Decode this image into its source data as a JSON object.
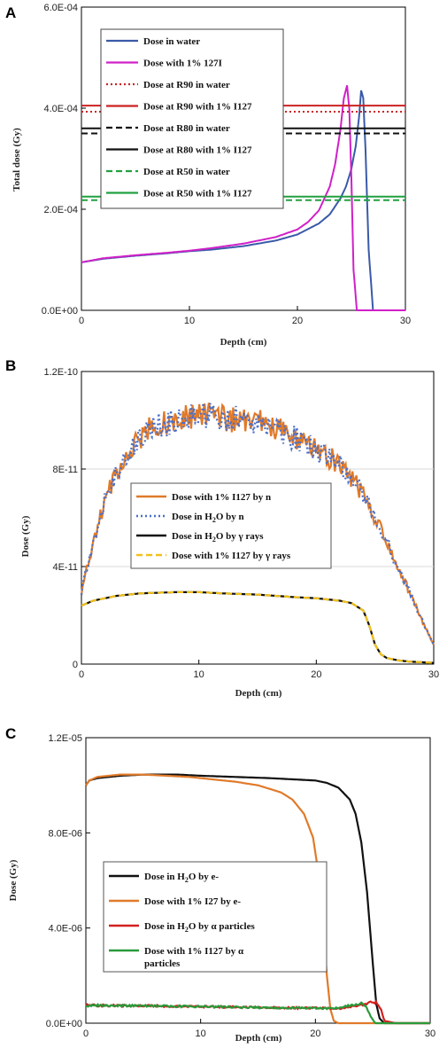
{
  "chart_data": [
    {
      "panel": "A",
      "type": "line",
      "xlabel": "Depth (cm)",
      "ylabel": "Total dose (Gy)",
      "xlim": [
        0,
        30
      ],
      "ylim": [
        0,
        0.0006
      ],
      "xticks": [
        0,
        10,
        20,
        30
      ],
      "xtick_labels": [
        "0",
        "10",
        "20",
        "30"
      ],
      "yticks": [
        0,
        0.0002,
        0.0004,
        0.0006
      ],
      "ytick_labels": [
        "0.0E+00",
        "2.0E-04",
        "4.0E-04",
        "6.0E-04"
      ],
      "legend_position": "top-left",
      "series": [
        {
          "name": "Dose in water",
          "color": "#3a5aa8",
          "dash": "solid",
          "x": [
            0,
            2,
            5,
            8,
            10,
            12,
            15,
            18,
            20,
            22,
            23,
            24,
            24.5,
            25,
            25.4,
            25.7,
            25.9,
            26.1,
            26.3,
            26.6,
            27,
            30
          ],
          "y": [
            9.5e-05,
            0.000102,
            0.000108,
            0.000113,
            0.000117,
            0.00012,
            0.000127,
            0.000138,
            0.00015,
            0.000172,
            0.00019,
            0.000222,
            0.000245,
            0.00028,
            0.000325,
            0.00038,
            0.000435,
            0.00042,
            0.00032,
            0.00012,
            0,
            0
          ]
        },
        {
          "name": "Dose with 1% 127I",
          "color": "#d020c8",
          "dash": "solid",
          "x": [
            0,
            2,
            5,
            8,
            10,
            12,
            15,
            18,
            20,
            21,
            22,
            23,
            23.5,
            24,
            24.3,
            24.6,
            24.8,
            25,
            25.2,
            25.5,
            30
          ],
          "y": [
            9.5e-05,
            0.000103,
            0.000109,
            0.000114,
            0.000118,
            0.000123,
            0.000132,
            0.000145,
            0.00016,
            0.000175,
            0.000198,
            0.000245,
            0.00029,
            0.00036,
            0.00042,
            0.000445,
            0.0004,
            0.00026,
            8e-05,
            0,
            0
          ]
        },
        {
          "name": "Dose at R90 in water",
          "color": "#cc2222",
          "dash": "dotted",
          "hline": 0.000393
        },
        {
          "name": "Dose at R90 with 1% I127",
          "color": "#cc2222",
          "dash": "solid",
          "hline": 0.000405
        },
        {
          "name": "Dose at R80 in water",
          "color": "#111111",
          "dash": "dashed",
          "hline": 0.00035
        },
        {
          "name": "Dose at R80 with 1% I127",
          "color": "#111111",
          "dash": "solid",
          "hline": 0.00036
        },
        {
          "name": "Dose at R50 in water",
          "color": "#22a040",
          "dash": "dashed",
          "hline": 0.000218
        },
        {
          "name": "Dose at R50 with 1% I127",
          "color": "#22a040",
          "dash": "solid",
          "hline": 0.000225
        }
      ]
    },
    {
      "panel": "B",
      "type": "line",
      "xlabel": "Depth (cm)",
      "ylabel": "Dose (Gy)",
      "xlim": [
        0,
        30
      ],
      "ylim": [
        0,
        1.2e-10
      ],
      "xticks": [
        0,
        10,
        20,
        30
      ],
      "xtick_labels": [
        "0",
        "10",
        "20",
        "30"
      ],
      "yticks": [
        0,
        4e-11,
        8e-11,
        1.2e-10
      ],
      "ytick_labels": [
        "0",
        "4E-11",
        "8E-11",
        "1.2E-10"
      ],
      "legend_position": "center",
      "series": [
        {
          "name": "Dose with 1% I127 by n",
          "color": "#e07a2a",
          "dash": "solid",
          "noisy": true,
          "x": [
            0,
            1,
            2,
            3,
            4,
            5,
            6,
            8,
            10,
            12,
            14,
            16,
            18,
            20,
            22,
            23,
            24,
            25,
            26,
            27,
            28,
            29,
            30
          ],
          "y": [
            3e-11,
            5e-11,
            6.7e-11,
            7.8e-11,
            8.7e-11,
            9.3e-11,
            9.7e-11,
            1e-10,
            1.02e-10,
            1.01e-10,
            1e-10,
            9.8e-11,
            9.3e-11,
            8.8e-11,
            8.2e-11,
            7.6e-11,
            7e-11,
            6e-11,
            5e-11,
            3.9e-11,
            2.9e-11,
            1.8e-11,
            8e-12
          ]
        },
        {
          "name": "Dose in H2O by n",
          "color": "#4a6fc8",
          "dash": "dotted",
          "noisy": true,
          "x": [
            0,
            1,
            2,
            3,
            4,
            5,
            6,
            8,
            10,
            12,
            14,
            16,
            18,
            20,
            22,
            23,
            24,
            25,
            26,
            27,
            28,
            29,
            30
          ],
          "y": [
            3e-11,
            5e-11,
            6.7e-11,
            7.8e-11,
            8.7e-11,
            9.3e-11,
            9.7e-11,
            1e-10,
            1.02e-10,
            1.01e-10,
            1e-10,
            9.8e-11,
            9.3e-11,
            8.8e-11,
            8.2e-11,
            7.6e-11,
            7e-11,
            6e-11,
            5e-11,
            3.9e-11,
            2.9e-11,
            1.8e-11,
            8e-12
          ]
        },
        {
          "name": "Dose in H2O by γ rays",
          "color": "#111111",
          "dash": "solid",
          "x": [
            0,
            1,
            3,
            5,
            8,
            10,
            12,
            15,
            18,
            20,
            22,
            23,
            24,
            24.5,
            25,
            25.5,
            26,
            27,
            28,
            30
          ],
          "y": [
            2.4e-11,
            2.6e-11,
            2.8e-11,
            2.9e-11,
            2.95e-11,
            2.95e-11,
            2.9e-11,
            2.85e-11,
            2.75e-11,
            2.7e-11,
            2.6e-11,
            2.5e-11,
            2.2e-11,
            1.6e-11,
            8e-12,
            4e-12,
            2.5e-12,
            1.5e-12,
            1e-12,
            5e-13
          ]
        },
        {
          "name": "Dose with 1% I127 by γ rays",
          "color": "#f2c21a",
          "dash": "dashed",
          "x": [
            0,
            1,
            3,
            5,
            8,
            10,
            12,
            15,
            18,
            20,
            22,
            23,
            24,
            24.5,
            25,
            25.5,
            26,
            27,
            28,
            30
          ],
          "y": [
            2.4e-11,
            2.6e-11,
            2.8e-11,
            2.9e-11,
            2.95e-11,
            2.95e-11,
            2.9e-11,
            2.85e-11,
            2.75e-11,
            2.7e-11,
            2.6e-11,
            2.5e-11,
            2.2e-11,
            1.6e-11,
            8e-12,
            4e-12,
            2.5e-12,
            1.5e-12,
            1e-12,
            5e-13
          ]
        }
      ]
    },
    {
      "panel": "C",
      "type": "line",
      "xlabel": "Depth (cm)",
      "ylabel": "Dose (Gy)",
      "xlim": [
        0,
        30
      ],
      "ylim": [
        0,
        1.2e-05
      ],
      "xticks": [
        0,
        10,
        20,
        30
      ],
      "xtick_labels": [
        "0",
        "10",
        "20",
        "30"
      ],
      "yticks": [
        0,
        4e-06,
        8e-06,
        1.2e-05
      ],
      "ytick_labels": [
        "0.0E+00",
        "4.0E-06",
        "8.0E-06",
        "1.2E-05"
      ],
      "legend_position": "left",
      "series": [
        {
          "name": "Dose in H2O by e-",
          "color": "#111111",
          "dash": "solid",
          "x": [
            0,
            0.3,
            1,
            3,
            5,
            8,
            10,
            13,
            16,
            18,
            20,
            21,
            22,
            23,
            23.5,
            24,
            24.5,
            25,
            25.3,
            25.6,
            26,
            27,
            30
          ],
          "y": [
            1e-05,
            1.02e-05,
            1.03e-05,
            1.04e-05,
            1.045e-05,
            1.045e-05,
            1.04e-05,
            1.035e-05,
            1.03e-05,
            1.025e-05,
            1.02e-05,
            1.01e-05,
            9.9e-06,
            9.4e-06,
            8.8e-06,
            7.6e-06,
            5.5e-06,
            2.5e-06,
            8e-07,
            2e-07,
            0,
            0,
            0
          ]
        },
        {
          "name": "Dose with 1% I27 by e-",
          "color": "#e07a2a",
          "dash": "solid",
          "x": [
            0,
            0.3,
            1,
            3,
            5,
            7,
            9,
            11,
            13,
            15,
            17,
            18,
            19,
            19.8,
            20.3,
            20.7,
            21,
            21.3,
            21.6,
            22,
            30
          ],
          "y": [
            1e-05,
            1.02e-05,
            1.035e-05,
            1.045e-05,
            1.045e-05,
            1.04e-05,
            1.035e-05,
            1.025e-05,
            1.015e-05,
            1e-05,
            9.7e-06,
            9.4e-06,
            8.8e-06,
            7.8e-06,
            6.2e-06,
            4e-06,
            2e-06,
            6e-07,
            1e-07,
            0,
            0
          ]
        },
        {
          "name": "Dose in H2O by α particles",
          "color": "#d42020",
          "dash": "solid",
          "noisy": true,
          "x": [
            0,
            5,
            10,
            15,
            20,
            22,
            23,
            24,
            24.8,
            25.3,
            25.7,
            26,
            27,
            30
          ],
          "y": [
            7.5e-07,
            7.3e-07,
            7e-07,
            6.6e-07,
            6.3e-07,
            6.2e-07,
            6.8e-07,
            7.8e-07,
            8.6e-07,
            8.8e-07,
            6e-07,
            1e-07,
            0,
            0
          ]
        },
        {
          "name": "Dose with 1% I127 by α particles",
          "color": "#2a9a3a",
          "dash": "solid",
          "noisy": true,
          "x": [
            0,
            5,
            10,
            15,
            20,
            21,
            22,
            23,
            23.6,
            24,
            24.4,
            24.8,
            25.2,
            26,
            30
          ],
          "y": [
            7.5e-07,
            7.3e-07,
            7e-07,
            6.6e-07,
            6.3e-07,
            6.2e-07,
            6.4e-07,
            7.4e-07,
            8e-07,
            8.3e-07,
            7e-07,
            3e-07,
            0,
            0,
            0
          ]
        }
      ]
    }
  ],
  "panels": [
    {
      "letter": "A",
      "legend_lines": [
        [
          "Dose in water"
        ],
        [
          "Dose with 1% 127I"
        ],
        [
          "Dose at R90 in water"
        ],
        [
          "Dose at R90 with 1% I127"
        ],
        [
          "Dose at R80 in water"
        ],
        [
          "Dose at R80 with 1% I127"
        ],
        [
          "Dose at R50 in water"
        ],
        [
          "Dose at R50 with 1% I127"
        ]
      ]
    },
    {
      "letter": "B",
      "legend_lines": [
        [
          "Dose with 1% I127 by n"
        ],
        [
          "Dose in H",
          "2",
          "O by n"
        ],
        [
          "Dose in H",
          "2",
          "O by γ rays"
        ],
        [
          "Dose with 1% I127 by γ rays"
        ]
      ]
    },
    {
      "letter": "C",
      "legend_lines": [
        [
          "Dose in H",
          "2",
          "O by e-"
        ],
        [
          "Dose with 1% I27 by e-"
        ],
        [
          "Dose in H",
          "2",
          "O by α particles"
        ],
        [
          "Dose with 1% I127 by α",
          "particles"
        ]
      ]
    }
  ]
}
